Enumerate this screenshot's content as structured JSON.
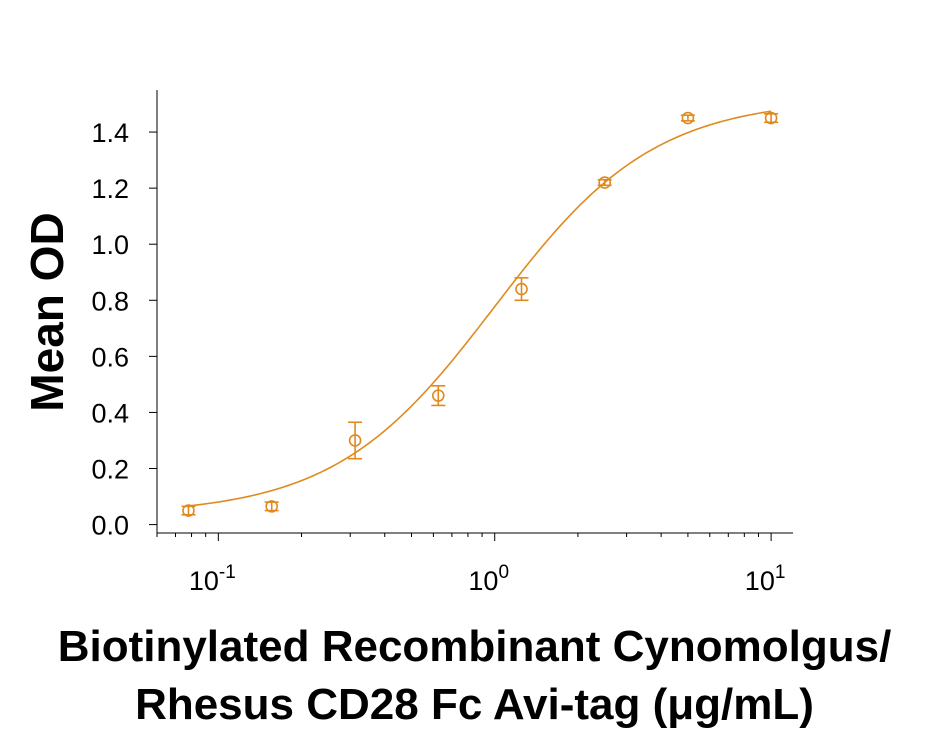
{
  "chart_data": {
    "type": "scatter",
    "xscale": "log",
    "xlabel": "Biotinylated Recombinant Cynomolgus/",
    "xlabel_line2": "Rhesus CD28 Fc Avi-tag (μg/mL)",
    "ylabel": "Mean OD",
    "xlim": [
      0.06,
      12
    ],
    "ylim": [
      -0.03,
      1.55
    ],
    "grid": false,
    "x_ticks": [
      {
        "value": 0.1,
        "base": "10",
        "exp": "-1"
      },
      {
        "value": 1,
        "base": "10",
        "exp": "0"
      },
      {
        "value": 10,
        "base": "10",
        "exp": "1"
      }
    ],
    "y_ticks": [
      {
        "value": 0.0,
        "label": "0.0"
      },
      {
        "value": 0.2,
        "label": "0.2"
      },
      {
        "value": 0.4,
        "label": "0.4"
      },
      {
        "value": 0.6,
        "label": "0.6"
      },
      {
        "value": 0.8,
        "label": "0.8"
      },
      {
        "value": 1.0,
        "label": "1.0"
      },
      {
        "value": 1.2,
        "label": "1.2"
      },
      {
        "value": 1.4,
        "label": "1.4"
      }
    ],
    "series": [
      {
        "color": "#e08a1e",
        "marker": "open-circle",
        "points": [
          {
            "x": 0.078,
            "y": 0.05,
            "err": 0.015
          },
          {
            "x": 0.156,
            "y": 0.065,
            "err": 0.015
          },
          {
            "x": 0.3125,
            "y": 0.3,
            "err": 0.065
          },
          {
            "x": 0.625,
            "y": 0.46,
            "err": 0.035
          },
          {
            "x": 1.25,
            "y": 0.84,
            "err": 0.04
          },
          {
            "x": 2.5,
            "y": 1.22,
            "err": 0.01
          },
          {
            "x": 5,
            "y": 1.45,
            "err": 0.01
          },
          {
            "x": 10,
            "y": 1.45,
            "err": 0.015
          }
        ],
        "fit": {
          "model": "4PL",
          "bottom": 0.035,
          "top": 1.52,
          "ec50": 1.0,
          "hill": 1.5,
          "x_start": 0.078,
          "x_end": 10
        }
      }
    ]
  }
}
